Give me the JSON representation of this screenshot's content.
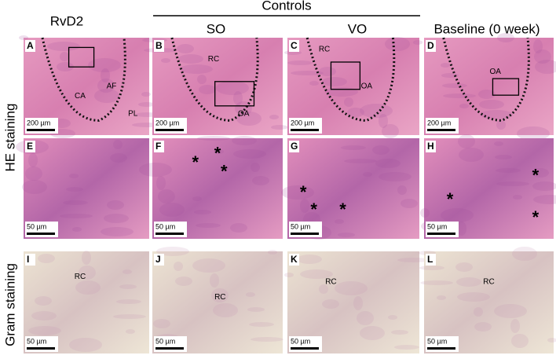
{
  "headers": {
    "group": "Controls",
    "columns": [
      "RvD2",
      "SO",
      "VO",
      "Baseline (0 week)"
    ]
  },
  "row_labels": [
    "HE staining",
    "Gram staining"
  ],
  "panels": [
    {
      "letter": "A",
      "scale": "200 µm",
      "labels": [
        "CA",
        "AF",
        "PL"
      ]
    },
    {
      "letter": "B",
      "scale": "200 µm",
      "labels": [
        "RC",
        "OA"
      ]
    },
    {
      "letter": "C",
      "scale": "200 µm",
      "labels": [
        "RC",
        "OA"
      ]
    },
    {
      "letter": "D",
      "scale": "200 µm",
      "labels": [
        "OA"
      ]
    },
    {
      "letter": "E",
      "scale": "50 µm",
      "labels": []
    },
    {
      "letter": "F",
      "scale": "50 µm",
      "labels": [
        "*",
        "*",
        "*"
      ]
    },
    {
      "letter": "G",
      "scale": "50 µm",
      "labels": [
        "*",
        "*",
        "*"
      ]
    },
    {
      "letter": "H",
      "scale": "50 µm",
      "labels": [
        "*",
        "*",
        "*"
      ]
    },
    {
      "letter": "I",
      "scale": "50 µm",
      "labels": [
        "RC"
      ]
    },
    {
      "letter": "J",
      "scale": "50 µm",
      "labels": [
        "RC"
      ]
    },
    {
      "letter": "K",
      "scale": "50 µm",
      "labels": [
        "RC"
      ]
    },
    {
      "letter": "L",
      "scale": "50 µm",
      "labels": [
        "RC"
      ]
    }
  ]
}
